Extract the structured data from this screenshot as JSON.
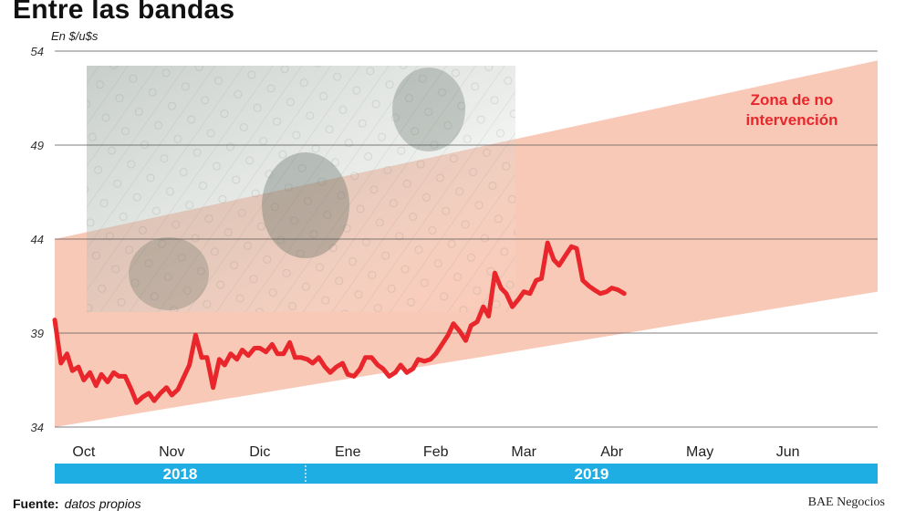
{
  "title": "Entre las bandas",
  "footer": {
    "source_label": "Fuente:",
    "source_value": "datos propios",
    "credit": "BAE Negocios"
  },
  "colors": {
    "line": "#e8262b",
    "band": "#f9c9b7",
    "year_bar": "#1eaee4",
    "zone_text": "#e8262b"
  },
  "chart_data": {
    "type": "line",
    "title": "Entre las bandas",
    "ylabel": "En $/u$s",
    "ylim": [
      34,
      54
    ],
    "yticks": [
      34,
      39,
      44,
      49,
      54
    ],
    "xlim": [
      0,
      9.35
    ],
    "month_ticks": [
      {
        "label": "Oct",
        "x": 0.33
      },
      {
        "label": "Nov",
        "x": 1.33
      },
      {
        "label": "Dic",
        "x": 2.33
      },
      {
        "label": "Ene",
        "x": 3.33
      },
      {
        "label": "Feb",
        "x": 4.33
      },
      {
        "label": "Mar",
        "x": 5.33
      },
      {
        "label": "Abr",
        "x": 6.33
      },
      {
        "label": "May",
        "x": 7.33
      },
      {
        "label": "Jun",
        "x": 8.33
      }
    ],
    "years": [
      {
        "label": "2018",
        "from": 0,
        "to": 2.85
      },
      {
        "label": "2019",
        "from": 2.85,
        "to": 9.35
      }
    ],
    "grid": true,
    "band": {
      "name": "Zona de no intervención",
      "lower": [
        [
          0,
          34.0
        ],
        [
          9.35,
          41.2
        ]
      ],
      "upper": [
        [
          0,
          44.0
        ],
        [
          9.35,
          53.5
        ]
      ]
    },
    "annotation": "Zona de no\nintervención",
    "series": [
      {
        "x": [
          0.0,
          0.07,
          0.14,
          0.2,
          0.27,
          0.33,
          0.4,
          0.47,
          0.53,
          0.6,
          0.67,
          0.73,
          0.8,
          0.87,
          0.93,
          1.0,
          1.07,
          1.13,
          1.2,
          1.27,
          1.33,
          1.4,
          1.47,
          1.53,
          1.6,
          1.67,
          1.73,
          1.8,
          1.87,
          1.93,
          2.0,
          2.07,
          2.13,
          2.2,
          2.27,
          2.33,
          2.4,
          2.47,
          2.53,
          2.6,
          2.67,
          2.73,
          2.8,
          2.87,
          2.93,
          3.0,
          3.07,
          3.13,
          3.2,
          3.27,
          3.33,
          3.4,
          3.47,
          3.53,
          3.6,
          3.67,
          3.73,
          3.8,
          3.87,
          3.93,
          4.0,
          4.07,
          4.13,
          4.2,
          4.27,
          4.33,
          4.4,
          4.47,
          4.53,
          4.6,
          4.67,
          4.73,
          4.8,
          4.87,
          4.93,
          5.0,
          5.07,
          5.13,
          5.2,
          5.27,
          5.33,
          5.4,
          5.47,
          5.53,
          5.6,
          5.67,
          5.73,
          5.8,
          5.87,
          5.93,
          6.0,
          6.07,
          6.13,
          6.2,
          6.27,
          6.33,
          6.4,
          6.47
        ],
        "values": [
          39.7,
          37.4,
          37.9,
          37.0,
          37.2,
          36.5,
          36.9,
          36.2,
          36.8,
          36.4,
          36.9,
          36.7,
          36.7,
          36.0,
          35.3,
          35.6,
          35.8,
          35.4,
          35.8,
          36.1,
          35.7,
          36.0,
          36.7,
          37.3,
          38.9,
          37.7,
          37.7,
          36.1,
          37.6,
          37.3,
          37.9,
          37.6,
          38.1,
          37.8,
          38.2,
          38.2,
          38.0,
          38.4,
          37.9,
          37.9,
          38.5,
          37.7,
          37.7,
          37.6,
          37.4,
          37.7,
          37.2,
          36.9,
          37.2,
          37.4,
          36.8,
          36.7,
          37.1,
          37.7,
          37.7,
          37.3,
          37.1,
          36.7,
          36.9,
          37.3,
          36.9,
          37.1,
          37.6,
          37.5,
          37.6,
          37.9,
          38.4,
          38.9,
          39.5,
          39.1,
          38.6,
          39.4,
          39.6,
          40.4,
          39.9,
          42.2,
          41.4,
          41.1,
          40.4,
          40.8,
          41.2,
          41.1,
          41.8,
          41.9,
          43.8,
          42.9,
          42.6,
          43.1,
          43.6,
          43.5,
          41.8,
          41.5,
          41.3,
          41.1,
          41.2,
          41.4,
          41.3,
          41.1
        ]
      }
    ]
  }
}
